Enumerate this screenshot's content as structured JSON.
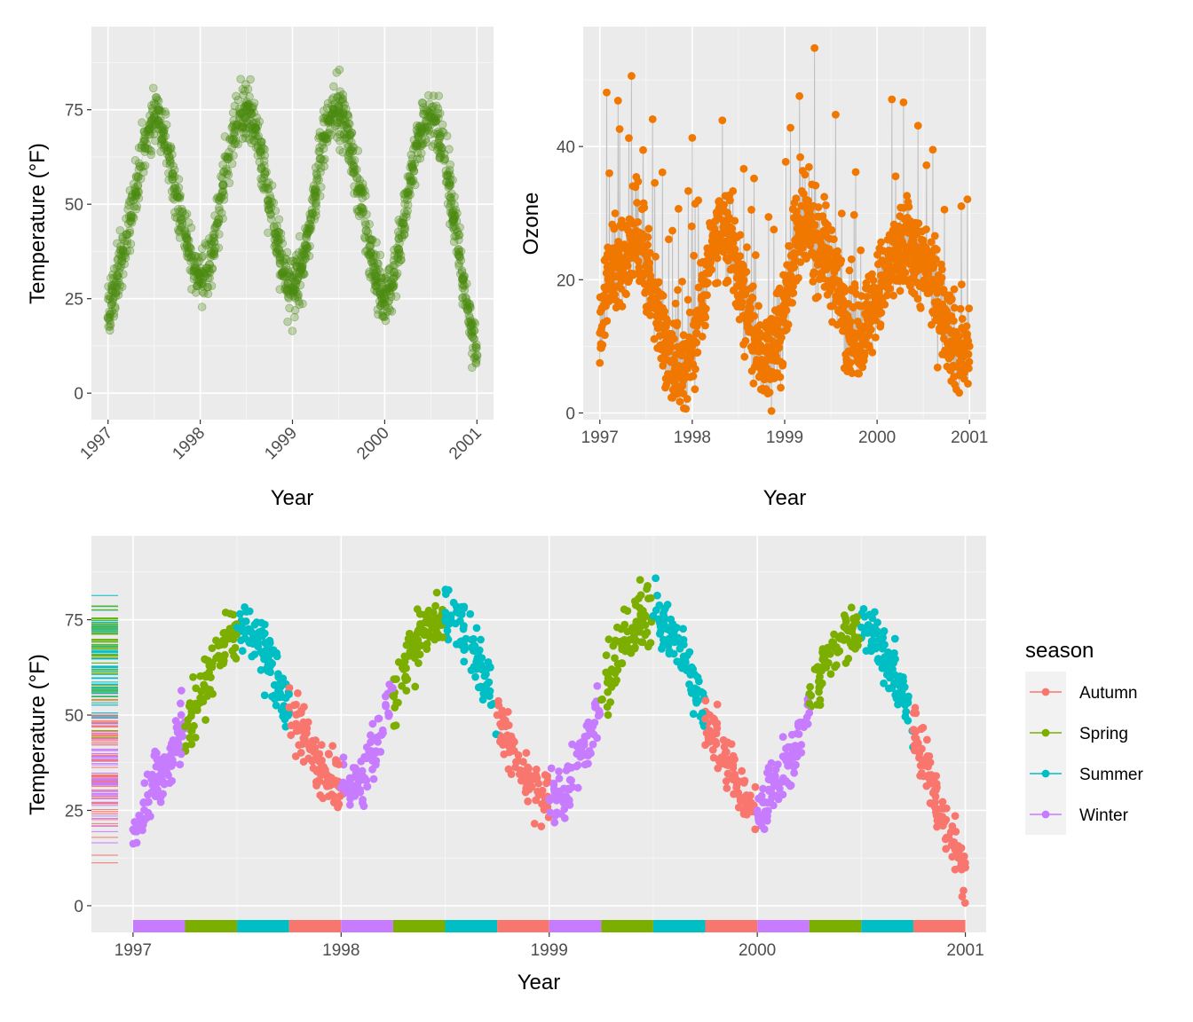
{
  "chart_data": [
    {
      "type": "scatter",
      "title": "",
      "xlabel": "Year",
      "ylabel": "Temperature (°F)",
      "xlim": [
        1996.82,
        2001.18
      ],
      "ylim": [
        -7,
        97
      ],
      "x_ticks": [
        1997,
        1998,
        1999,
        2000,
        2001
      ],
      "x_tick_labels": [
        "1997",
        "1998",
        "1999",
        "2000",
        "2001"
      ],
      "x_tick_labels_rotated": true,
      "y_ticks": [
        0,
        25,
        50,
        75
      ],
      "y_tick_labels": [
        "0",
        "25",
        "50",
        "75"
      ],
      "grid": true,
      "point_color": "#4c8c11",
      "point_opacity": 0.3,
      "series": [
        {
          "x": [
            1997.0,
            1997.05,
            1997.1,
            1997.15,
            1997.2,
            1997.25,
            1997.3,
            1997.35,
            1997.4,
            1997.45,
            1997.5,
            1997.55,
            1997.6,
            1997.65,
            1997.7,
            1997.75,
            1997.8,
            1997.85,
            1997.9,
            1997.95,
            1998.0,
            1998.05,
            1998.1,
            1998.15,
            1998.2,
            1998.25,
            1998.3,
            1998.35,
            1998.4,
            1998.45,
            1998.5,
            1998.55,
            1998.6,
            1998.65,
            1998.7,
            1998.75,
            1998.8,
            1998.85,
            1998.9,
            1998.95,
            1999.0,
            1999.05,
            1999.1,
            1999.15,
            1999.2,
            1999.25,
            1999.3,
            1999.35,
            1999.4,
            1999.45,
            1999.5,
            1999.55,
            1999.6,
            1999.65,
            1999.7,
            1999.75,
            1999.8,
            1999.85,
            1999.9,
            1999.95,
            2000.0,
            2000.05,
            2000.1,
            2000.15,
            2000.2,
            2000.25,
            2000.3,
            2000.35,
            2000.4,
            2000.45,
            2000.5,
            2000.55,
            2000.6,
            2000.65,
            2000.7,
            2000.75,
            2000.8,
            2000.85,
            2000.9,
            2000.95,
            2001.0
          ],
          "y": [
            20,
            27,
            31,
            35,
            42,
            47,
            53,
            60,
            65,
            70,
            73,
            72,
            69,
            64,
            58,
            52,
            46,
            41,
            36,
            33,
            31,
            31,
            34,
            40,
            46,
            55,
            62,
            67,
            71,
            74,
            75,
            74,
            70,
            64,
            58,
            50,
            44,
            38,
            32,
            29,
            28,
            30,
            33,
            39,
            46,
            54,
            62,
            68,
            72,
            75,
            76,
            74,
            70,
            64,
            57,
            49,
            43,
            37,
            31,
            27,
            25,
            27,
            32,
            38,
            45,
            53,
            60,
            66,
            70,
            72,
            73,
            72,
            68,
            62,
            55,
            46,
            38,
            30,
            22,
            15,
            10
          ]
        }
      ]
    },
    {
      "type": "line",
      "title": "",
      "xlabel": "Year",
      "ylabel": "Ozone",
      "xlim": [
        1996.82,
        2001.18
      ],
      "ylim": [
        -1,
        58
      ],
      "x_ticks": [
        1997,
        1998,
        1999,
        2000,
        2001
      ],
      "x_tick_labels": [
        "1997",
        "1998",
        "1999",
        "2000",
        "2001"
      ],
      "y_ticks": [
        0,
        20,
        40
      ],
      "y_tick_labels": [
        "0",
        "20",
        "40"
      ],
      "grid": true,
      "point_color": "#f07800",
      "line_color": "#bebebe",
      "series": [
        {
          "x": [
            1997.0,
            1997.05,
            1997.1,
            1997.15,
            1997.2,
            1997.25,
            1997.3,
            1997.35,
            1997.4,
            1997.45,
            1997.5,
            1997.55,
            1997.6,
            1997.65,
            1997.7,
            1997.75,
            1997.8,
            1997.85,
            1997.9,
            1997.95,
            1998.0,
            1998.05,
            1998.1,
            1998.15,
            1998.2,
            1998.25,
            1998.3,
            1998.35,
            1998.4,
            1998.45,
            1998.5,
            1998.55,
            1998.6,
            1998.65,
            1998.7,
            1998.75,
            1998.8,
            1998.85,
            1998.9,
            1998.95,
            1999.0,
            1999.05,
            1999.1,
            1999.15,
            1999.2,
            1999.25,
            1999.3,
            1999.35,
            1999.4,
            1999.45,
            1999.5,
            1999.55,
            1999.6,
            1999.65,
            1999.7,
            1999.75,
            1999.8,
            1999.85,
            1999.9,
            1999.95,
            2000.0,
            2000.05,
            2000.1,
            2000.15,
            2000.2,
            2000.25,
            2000.3,
            2000.35,
            2000.4,
            2000.45,
            2000.5,
            2000.55,
            2000.6,
            2000.65,
            2000.7,
            2000.75,
            2000.8,
            2000.85,
            2000.9,
            2000.95,
            2001.0
          ],
          "y": [
            12,
            17,
            20,
            22,
            24,
            23,
            25,
            27,
            26,
            25,
            22,
            20,
            17,
            15,
            12,
            10,
            8,
            7,
            7,
            8,
            10,
            13,
            17,
            21,
            24,
            25,
            26,
            27,
            26,
            24,
            21,
            18,
            15,
            12,
            10,
            8,
            8,
            9,
            10,
            12,
            16,
            20,
            24,
            26,
            27,
            28,
            27,
            26,
            25,
            24,
            22,
            20,
            17,
            15,
            13,
            12,
            12,
            13,
            14,
            16,
            17,
            19,
            21,
            22,
            23,
            24,
            25,
            25,
            24,
            23,
            22,
            21,
            20,
            18,
            16,
            14,
            12,
            10,
            9,
            9,
            10
          ]
        }
      ]
    },
    {
      "type": "scatter",
      "title": "",
      "xlabel": "Year",
      "ylabel": "Temperature (°F)",
      "xlim": [
        1996.8,
        2001.1
      ],
      "ylim": [
        -7,
        97
      ],
      "x_ticks": [
        1997,
        1998,
        1999,
        2000,
        2001
      ],
      "x_tick_labels": [
        "1997",
        "1998",
        "1999",
        "2000",
        "2001"
      ],
      "y_ticks": [
        0,
        25,
        50,
        75
      ],
      "y_tick_labels": [
        "0",
        "25",
        "50",
        "75"
      ],
      "grid": true,
      "legend": {
        "title": "season",
        "placement": "right",
        "entries": [
          {
            "name": "Autumn",
            "color": "#f8766d"
          },
          {
            "name": "Spring",
            "color": "#7cae00"
          },
          {
            "name": "Summer",
            "color": "#00bfc4"
          },
          {
            "name": "Winter",
            "color": "#c77cff"
          }
        ]
      },
      "season_bands": [
        {
          "season": "Winter",
          "from": 1997.0,
          "to": 1997.25
        },
        {
          "season": "Spring",
          "from": 1997.25,
          "to": 1997.5
        },
        {
          "season": "Summer",
          "from": 1997.5,
          "to": 1997.75
        },
        {
          "season": "Autumn",
          "from": 1997.75,
          "to": 1998.0
        },
        {
          "season": "Winter",
          "from": 1998.0,
          "to": 1998.25
        },
        {
          "season": "Spring",
          "from": 1998.25,
          "to": 1998.5
        },
        {
          "season": "Summer",
          "from": 1998.5,
          "to": 1998.75
        },
        {
          "season": "Autumn",
          "from": 1998.75,
          "to": 1999.0
        },
        {
          "season": "Winter",
          "from": 1999.0,
          "to": 1999.25
        },
        {
          "season": "Spring",
          "from": 1999.25,
          "to": 1999.5
        },
        {
          "season": "Summer",
          "from": 1999.5,
          "to": 1999.75
        },
        {
          "season": "Autumn",
          "from": 1999.75,
          "to": 2000.0
        },
        {
          "season": "Winter",
          "from": 2000.0,
          "to": 2000.25
        },
        {
          "season": "Spring",
          "from": 2000.25,
          "to": 2000.5
        },
        {
          "season": "Summer",
          "from": 2000.5,
          "to": 2000.75
        },
        {
          "season": "Autumn",
          "from": 2000.75,
          "to": 2001.0
        }
      ]
    }
  ]
}
